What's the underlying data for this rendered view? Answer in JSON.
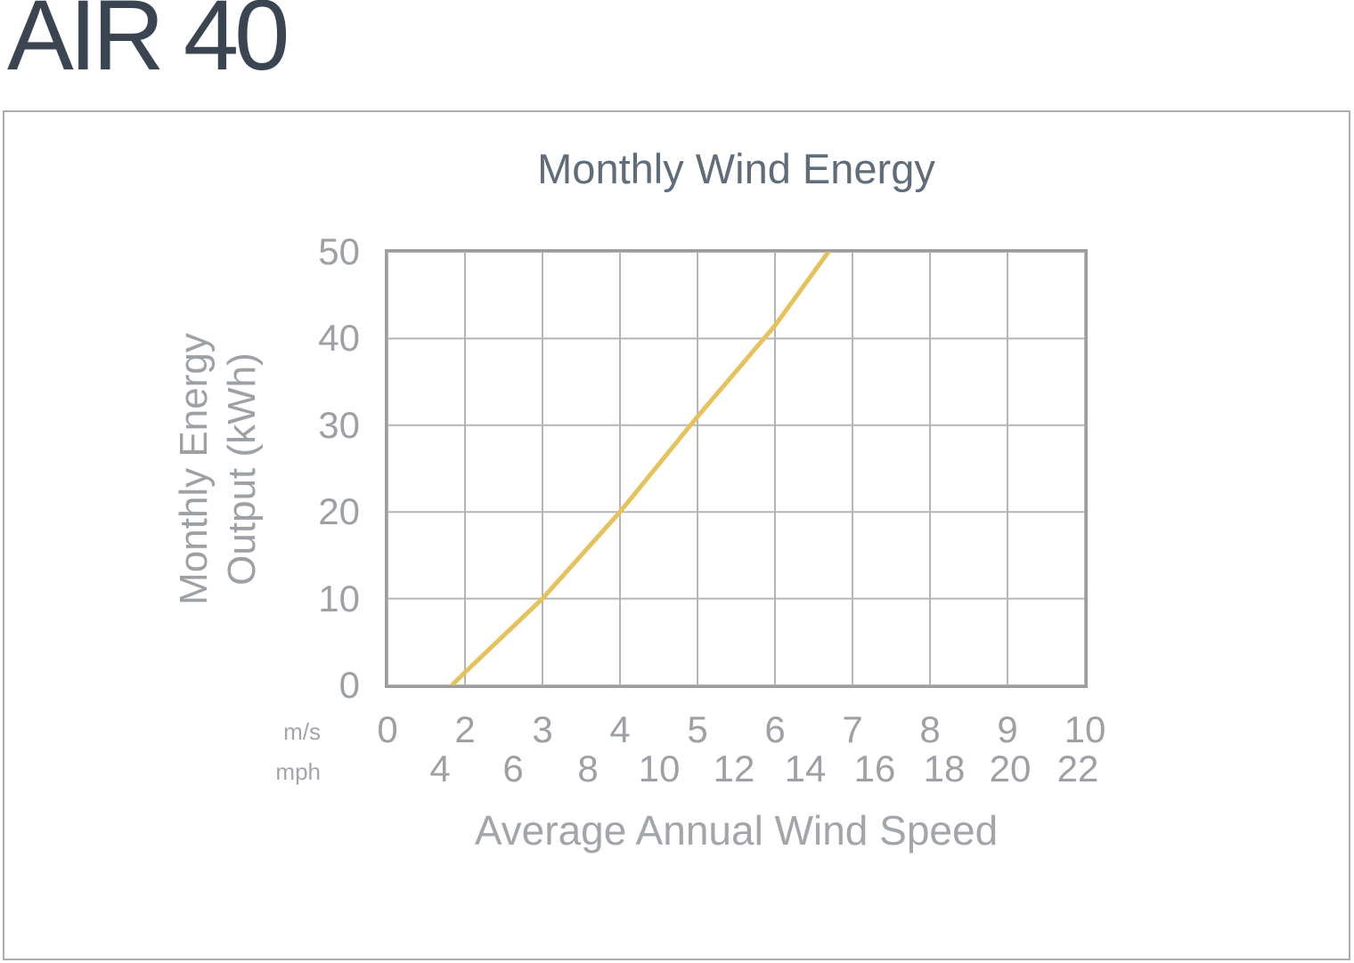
{
  "page": {
    "product_title": "AIR 40"
  },
  "chart": {
    "title": "Monthly Wind Energy",
    "y_axis": {
      "label_line1": "Monthly Energy",
      "label_line2": "Output (kWh)",
      "ticks": [
        "50",
        "40",
        "30",
        "20",
        "10",
        "0"
      ]
    },
    "x_axis": {
      "label": "Average Annual Wind Speed",
      "unit_row1": "m/s",
      "unit_row2": "mph",
      "ms_ticks": [
        "0",
        "2",
        "3",
        "4",
        "5",
        "6",
        "7",
        "8",
        "9",
        "10"
      ],
      "mph_ticks": [
        "4",
        "6",
        "8",
        "10",
        "12",
        "14",
        "16",
        "18",
        "20",
        "22"
      ]
    },
    "colors": {
      "line": "#e6c25c",
      "grid": "#b5b5b6",
      "plot_border": "#9d9d9d",
      "title_text": "#5f6d7b",
      "tick_text": "#9da0a5"
    }
  },
  "chart_data": {
    "type": "line",
    "title": "Monthly Wind Energy",
    "xlabel": "Average Annual Wind Speed",
    "ylabel": "Monthly Energy Output (kWh)",
    "x_units": [
      "m/s",
      "mph"
    ],
    "x_ticks_ms": [
      0,
      2,
      3,
      4,
      5,
      6,
      7,
      8,
      9,
      10
    ],
    "x_ticks_mph": [
      4,
      6,
      8,
      10,
      12,
      14,
      16,
      18,
      20,
      22
    ],
    "y_ticks": [
      0,
      10,
      20,
      30,
      40,
      50
    ],
    "ylim": [
      0,
      50
    ],
    "xlim_ms": [
      0,
      10
    ],
    "grid": true,
    "legend": false,
    "x_scale_note": "first grid interval spans 0-2 m/s; each subsequent interval is 1 m/s",
    "series": [
      {
        "name": "AIR 40 monthly energy output",
        "x_ms": [
          1.66,
          2,
          3,
          4,
          5,
          6,
          6.69
        ],
        "y_kwh": [
          0,
          1.5,
          10,
          20,
          31,
          41.5,
          50
        ]
      }
    ],
    "line_color": "#e6c25c"
  }
}
